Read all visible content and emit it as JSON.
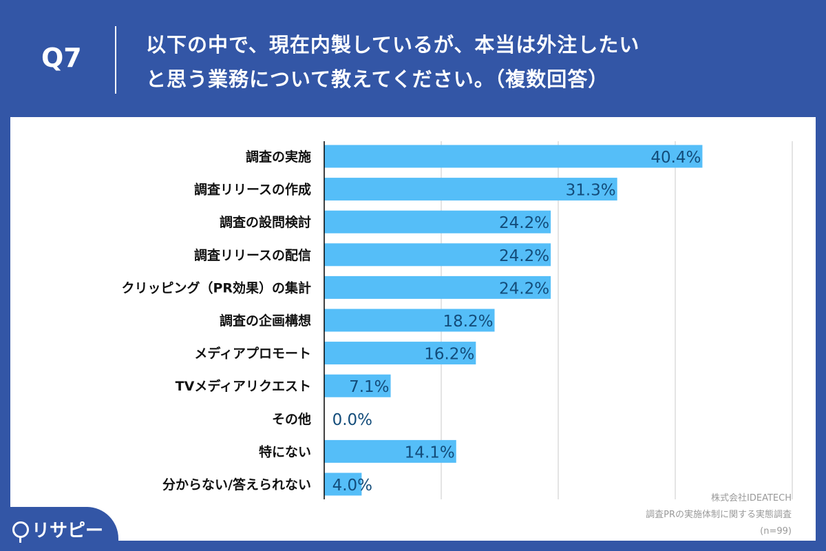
{
  "header": {
    "question_no": "Q7",
    "title_line1": "以下の中で、現在内製しているが、本当は外注したい",
    "title_line2": "と思う業務について教えてください。（複数回答）"
  },
  "footer": {
    "company": "株式会社IDEATECH",
    "survey": "調査PRの実施体制に関する実態調査",
    "sample": "(n=99)"
  },
  "logo": {
    "text": "リサピー"
  },
  "colors": {
    "background": "#3356a6",
    "bar": "#55bef8",
    "value_label": "#134c7a"
  },
  "chart_data": {
    "type": "bar",
    "orientation": "horizontal",
    "categories": [
      "調査の実施",
      "調査リリースの作成",
      "調査の設問検討",
      "調査リリースの配信",
      "クリッピング（PR効果）の集計",
      "調査の企画構想",
      "メディアプロモート",
      "TVメディアリクエスト",
      "その他",
      "特にない",
      "分からない/答えられない"
    ],
    "values": [
      40.4,
      31.3,
      24.2,
      24.2,
      24.2,
      18.2,
      16.2,
      7.1,
      0.0,
      14.1,
      4.0
    ],
    "value_labels": [
      "40.4%",
      "31.3%",
      "24.2%",
      "24.2%",
      "24.2%",
      "18.2%",
      "16.2%",
      "7.1%",
      "0.0%",
      "14.1%",
      "4.0%"
    ],
    "xlim": [
      0,
      50
    ],
    "grid": true,
    "unit": "%"
  }
}
